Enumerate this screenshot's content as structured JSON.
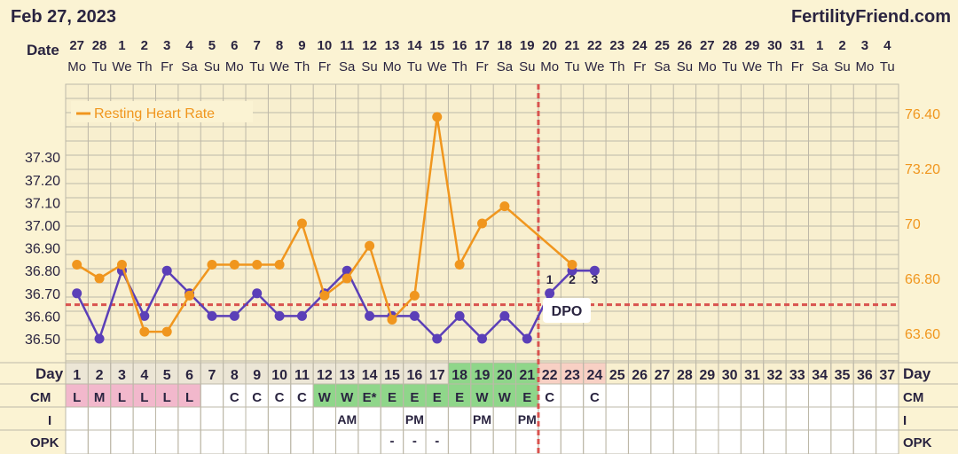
{
  "header": {
    "date": "Feb 27, 2023",
    "site": "FertilityFriend.com"
  },
  "row_labels": {
    "date": "Date",
    "day": "Day",
    "cm": "CM",
    "i": "I",
    "opk": "OPK",
    "dpo": "DPO"
  },
  "dates": [
    "27",
    "28",
    "1",
    "2",
    "3",
    "4",
    "5",
    "6",
    "7",
    "8",
    "9",
    "10",
    "11",
    "12",
    "13",
    "14",
    "15",
    "16",
    "17",
    "18",
    "19",
    "20",
    "21",
    "22",
    "23",
    "24",
    "25",
    "26",
    "27",
    "28",
    "29",
    "30",
    "31",
    "1",
    "2",
    "3",
    "4"
  ],
  "weekdays": [
    "Mo",
    "Tu",
    "We",
    "Th",
    "Fr",
    "Sa",
    "Su",
    "Mo",
    "Tu",
    "We",
    "Th",
    "Fr",
    "Sa",
    "Su",
    "Mo",
    "Tu",
    "We",
    "Th",
    "Fr",
    "Sa",
    "Su",
    "Mo",
    "Tu",
    "We",
    "Th",
    "Fr",
    "Sa",
    "Su",
    "Mo",
    "Tu",
    "We",
    "Th",
    "Fr",
    "Sa",
    "Su",
    "Mo",
    "Tu"
  ],
  "days": [
    "1",
    "2",
    "3",
    "4",
    "5",
    "6",
    "7",
    "8",
    "9",
    "10",
    "11",
    "12",
    "13",
    "14",
    "15",
    "16",
    "17",
    "18",
    "19",
    "20",
    "21",
    "22",
    "23",
    "24",
    "25",
    "26",
    "27",
    "28",
    "29",
    "30",
    "31",
    "32",
    "33",
    "34",
    "35",
    "36",
    "37"
  ],
  "day_highlight": {
    "menses": [
      1,
      2,
      3,
      4,
      5,
      6
    ],
    "fertile": [
      18,
      19,
      20,
      21
    ],
    "luteal": [
      22,
      23,
      24
    ]
  },
  "cm": [
    "L",
    "M",
    "L",
    "L",
    "L",
    "L",
    "",
    "C",
    "C",
    "C",
    "C",
    "W",
    "W",
    "E*",
    "E",
    "E",
    "E",
    "E",
    "W",
    "W",
    "E",
    "C",
    "",
    "C",
    "",
    "",
    "",
    "",
    "",
    "",
    "",
    "",
    "",
    "",
    "",
    "",
    ""
  ],
  "intercourse": [
    "",
    "",
    "",
    "",
    "",
    "",
    "",
    "",
    "",
    "",
    "",
    "",
    "AM",
    "",
    "",
    "PM",
    "",
    "",
    "PM",
    "",
    "PM",
    "",
    "",
    "",
    "",
    "",
    "",
    "",
    "",
    "",
    "",
    "",
    "",
    "",
    "",
    "",
    ""
  ],
  "opk": [
    "",
    "",
    "",
    "",
    "",
    "",
    "",
    "",
    "",
    "",
    "",
    "",
    "",
    "",
    "-",
    "-",
    "-",
    "",
    "",
    "",
    "",
    "",
    "",
    "",
    "",
    "",
    "",
    "",
    "",
    "",
    "",
    "",
    "",
    "",
    "",
    "",
    ""
  ],
  "dpo_labels": [
    "1",
    "2",
    "3"
  ],
  "colors": {
    "bbt": "#5b3fb8",
    "rhr": "#f0961e",
    "coverline": "#d9534f",
    "menses": "#f2b8cc",
    "fertile": "#8fd68a",
    "luteal": "#f8d0c4",
    "grid": "#bdb8a8",
    "background": "#fbf3d3"
  },
  "chart_data": {
    "type": "line",
    "x_label": "Day",
    "y_left": {
      "ticks": [
        "36.50",
        "36.60",
        "36.70",
        "36.80",
        "36.90",
        "37.00",
        "37.10",
        "37.20",
        "37.30"
      ],
      "range": [
        36.4,
        37.35
      ]
    },
    "y_right": {
      "ticks": [
        "63.60",
        "66.80",
        "70",
        "73.20",
        "76.40"
      ]
    },
    "coverline": 36.65,
    "ovulation_day": 21,
    "legend": "Resting Heart Rate",
    "series": [
      {
        "axis": "left",
        "color": "#5b3fb8",
        "values": [
          36.7,
          36.5,
          36.8,
          36.6,
          36.8,
          36.7,
          36.6,
          36.6,
          36.7,
          36.6,
          36.6,
          36.7,
          36.8,
          36.6,
          36.6,
          36.6,
          36.5,
          36.6,
          36.5,
          36.6,
          36.5,
          36.7,
          36.8,
          36.8
        ]
      },
      {
        "name": "Resting Heart Rate",
        "axis": "right",
        "color": "#f0961e",
        "values": [
          67.6,
          66.8,
          67.6,
          63.7,
          63.7,
          65.8,
          67.6,
          67.6,
          67.6,
          67.6,
          70.0,
          65.8,
          66.8,
          68.7,
          64.4,
          65.8,
          76.2,
          67.6,
          70.0,
          71.0,
          null,
          null,
          67.6,
          null
        ]
      }
    ]
  }
}
